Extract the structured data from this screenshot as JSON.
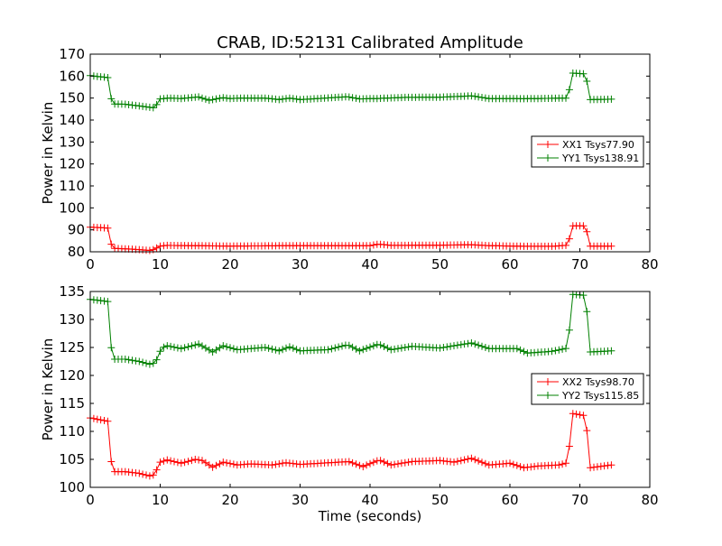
{
  "title": "CRAB, ID:52131 Calibrated Amplitude",
  "chart_data": [
    {
      "type": "line",
      "ylabel": "Power in Kelvin",
      "xlabel": "",
      "xlim": [
        0,
        80
      ],
      "ylim": [
        80,
        170
      ],
      "xticks": [
        0,
        10,
        20,
        30,
        40,
        50,
        60,
        70,
        80
      ],
      "yticks": [
        80,
        90,
        100,
        110,
        120,
        130,
        140,
        150,
        160,
        170
      ],
      "legend_position": "center-right",
      "marker": "plus",
      "series": [
        {
          "name": "XX1 Tsys77.90",
          "color": "#ff0000",
          "anchors": [
            [
              0,
              91.2
            ],
            [
              2.6,
              90.8
            ],
            [
              3.1,
              81.6
            ],
            [
              6,
              81.2
            ],
            [
              8.6,
              80.6
            ],
            [
              9.2,
              81.2
            ],
            [
              10,
              82.6
            ],
            [
              11,
              82.9
            ],
            [
              20,
              82.6
            ],
            [
              30,
              82.8
            ],
            [
              40,
              82.8
            ],
            [
              41.2,
              83.5
            ],
            [
              43,
              82.9
            ],
            [
              50,
              83.0
            ],
            [
              54.5,
              83.2
            ],
            [
              57,
              82.8
            ],
            [
              62,
              82.5
            ],
            [
              66,
              82.5
            ],
            [
              68.3,
              83.0
            ],
            [
              68.9,
              91.8
            ],
            [
              70.8,
              91.8
            ],
            [
              71.5,
              82.6
            ],
            [
              74.6,
              82.6
            ]
          ]
        },
        {
          "name": "YY1 Tsys138.91",
          "color": "#008000",
          "anchors": [
            [
              0,
              160.2
            ],
            [
              2.6,
              159.3
            ],
            [
              3.1,
              147.3
            ],
            [
              5,
              147.2
            ],
            [
              8,
              146.0
            ],
            [
              9.2,
              145.5
            ],
            [
              10,
              149.6
            ],
            [
              11,
              150.0
            ],
            [
              13,
              149.8
            ],
            [
              15.5,
              150.5
            ],
            [
              17,
              149.0
            ],
            [
              19,
              150.2
            ],
            [
              20,
              149.8
            ],
            [
              22,
              150.0
            ],
            [
              25,
              150.0
            ],
            [
              27,
              149.3
            ],
            [
              28.5,
              150.0
            ],
            [
              30,
              149.3
            ],
            [
              36.8,
              150.6
            ],
            [
              38.5,
              149.6
            ],
            [
              41,
              149.8
            ],
            [
              45,
              150.3
            ],
            [
              50,
              150.4
            ],
            [
              54.5,
              151.0
            ],
            [
              57,
              149.8
            ],
            [
              62,
              149.7
            ],
            [
              68.3,
              150.0
            ],
            [
              68.9,
              161.4
            ],
            [
              70.8,
              161.0
            ],
            [
              71.5,
              149.3
            ],
            [
              74.6,
              149.5
            ]
          ]
        }
      ]
    },
    {
      "type": "line",
      "ylabel": "Power in Kelvin",
      "xlabel": "Time (seconds)",
      "xlim": [
        0,
        80
      ],
      "ylim": [
        100,
        135
      ],
      "xticks": [
        0,
        10,
        20,
        30,
        40,
        50,
        60,
        70,
        80
      ],
      "yticks": [
        100,
        105,
        110,
        115,
        120,
        125,
        130,
        135
      ],
      "legend_position": "center-right",
      "marker": "plus",
      "series": [
        {
          "name": "XX2 Tsys98.70",
          "color": "#ff0000",
          "anchors": [
            [
              0,
              112.4
            ],
            [
              2.6,
              111.8
            ],
            [
              3.1,
              102.8
            ],
            [
              5,
              102.8
            ],
            [
              7,
              102.5
            ],
            [
              8.6,
              102.0
            ],
            [
              9.2,
              102.3
            ],
            [
              10,
              104.5
            ],
            [
              11,
              104.9
            ],
            [
              13,
              104.3
            ],
            [
              15,
              105.0
            ],
            [
              16,
              104.8
            ],
            [
              17.5,
              103.6
            ],
            [
              19,
              104.5
            ],
            [
              21,
              104.0
            ],
            [
              23,
              104.2
            ],
            [
              26,
              104.0
            ],
            [
              28,
              104.4
            ],
            [
              30,
              104.1
            ],
            [
              37,
              104.6
            ],
            [
              39,
              103.7
            ],
            [
              41.3,
              104.9
            ],
            [
              43,
              104.0
            ],
            [
              46,
              104.6
            ],
            [
              50,
              104.8
            ],
            [
              52,
              104.5
            ],
            [
              54.5,
              105.2
            ],
            [
              57,
              104.0
            ],
            [
              60,
              104.3
            ],
            [
              62,
              103.5
            ],
            [
              64,
              103.8
            ],
            [
              67,
              104.0
            ],
            [
              68.3,
              104.4
            ],
            [
              68.9,
              113.2
            ],
            [
              70.8,
              112.8
            ],
            [
              71.5,
              103.5
            ],
            [
              74.6,
              104.0
            ]
          ]
        },
        {
          "name": "YY2 Tsys115.85",
          "color": "#008000",
          "anchors": [
            [
              0,
              133.6
            ],
            [
              2.6,
              133.2
            ],
            [
              3.1,
              122.9
            ],
            [
              5,
              122.9
            ],
            [
              7,
              122.5
            ],
            [
              8.8,
              121.9
            ],
            [
              9.5,
              122.8
            ],
            [
              10.2,
              124.9
            ],
            [
              11,
              125.3
            ],
            [
              13,
              124.8
            ],
            [
              15.5,
              125.6
            ],
            [
              17.5,
              124.2
            ],
            [
              19,
              125.3
            ],
            [
              21,
              124.6
            ],
            [
              25,
              125.0
            ],
            [
              27,
              124.4
            ],
            [
              28.5,
              125.1
            ],
            [
              30,
              124.4
            ],
            [
              34,
              124.6
            ],
            [
              36.8,
              125.5
            ],
            [
              38.5,
              124.4
            ],
            [
              41.2,
              125.6
            ],
            [
              43,
              124.6
            ],
            [
              46,
              125.2
            ],
            [
              50,
              124.9
            ],
            [
              54.5,
              125.8
            ],
            [
              57,
              124.8
            ],
            [
              61,
              124.8
            ],
            [
              62.5,
              124.0
            ],
            [
              66,
              124.3
            ],
            [
              68.3,
              124.9
            ],
            [
              68.9,
              134.5
            ],
            [
              70.8,
              134.3
            ],
            [
              71.5,
              124.2
            ],
            [
              74.6,
              124.4
            ]
          ]
        }
      ]
    }
  ]
}
